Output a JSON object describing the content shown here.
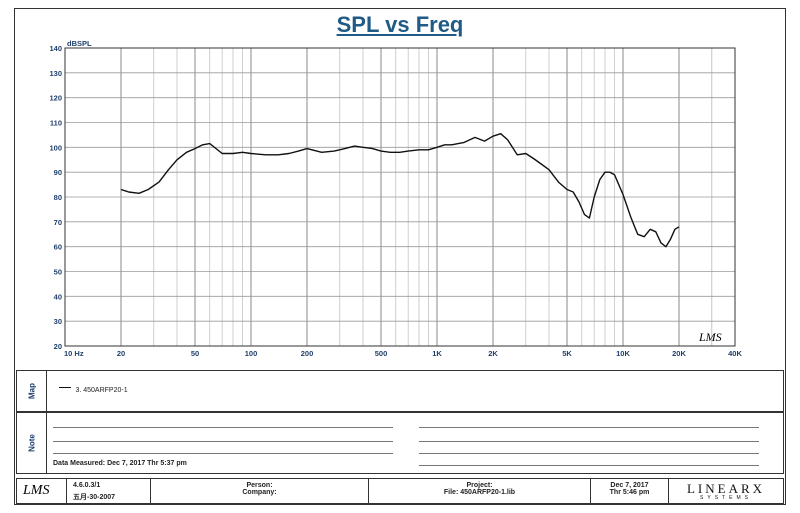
{
  "chart_data": {
    "type": "line",
    "title": "SPL vs Freq",
    "ylabel": "dBSPL",
    "xlabel": "",
    "x_scale": "log",
    "xlim": [
      10,
      40000
    ],
    "ylim": [
      20,
      140
    ],
    "x_ticks": [
      {
        "value": 10,
        "label": "10  Hz"
      },
      {
        "value": 20,
        "label": "20"
      },
      {
        "value": 50,
        "label": "50"
      },
      {
        "value": 100,
        "label": "100"
      },
      {
        "value": 200,
        "label": "200"
      },
      {
        "value": 500,
        "label": "500"
      },
      {
        "value": 1000,
        "label": "1K"
      },
      {
        "value": 2000,
        "label": "2K"
      },
      {
        "value": 5000,
        "label": "5K"
      },
      {
        "value": 10000,
        "label": "10K"
      },
      {
        "value": 20000,
        "label": "20K"
      },
      {
        "value": 40000,
        "label": "40K"
      }
    ],
    "y_ticks": [
      20,
      30,
      40,
      50,
      60,
      70,
      80,
      90,
      100,
      110,
      120,
      130,
      140
    ],
    "grid": true,
    "series": [
      {
        "name": "3. 450ARFP20-1",
        "color": "#111111",
        "x": [
          20,
          22,
          25,
          28,
          32,
          36,
          40,
          45,
          50,
          55,
          60,
          70,
          80,
          90,
          100,
          120,
          140,
          160,
          180,
          200,
          240,
          280,
          320,
          360,
          400,
          450,
          500,
          560,
          630,
          700,
          800,
          900,
          1000,
          1100,
          1200,
          1400,
          1600,
          1800,
          2000,
          2200,
          2400,
          2700,
          3000,
          3300,
          3600,
          4000,
          4500,
          5000,
          5400,
          5800,
          6200,
          6600,
          7000,
          7500,
          8000,
          8500,
          9000,
          10000,
          11000,
          12000,
          13000,
          14000,
          15000,
          16000,
          17000,
          18000,
          19000,
          20000
        ],
        "y": [
          83,
          82,
          81.5,
          83,
          86,
          91,
          95,
          98,
          99.5,
          101,
          101.5,
          97.5,
          97.5,
          98,
          97.5,
          97,
          97,
          97.5,
          98.5,
          99.5,
          98,
          98.5,
          99.5,
          100.5,
          100,
          99.5,
          98.5,
          98,
          98,
          98.5,
          99,
          99,
          100,
          101,
          101,
          102,
          104,
          102.5,
          104.5,
          105.5,
          103,
          97,
          97.5,
          95.5,
          93.5,
          91,
          86,
          83,
          82,
          78,
          73,
          71.5,
          80,
          87,
          90,
          90,
          89,
          81,
          72,
          65,
          64,
          67,
          66,
          61.5,
          60,
          63,
          67,
          68
        ]
      }
    ]
  },
  "watermark": "LMS",
  "map_panel": {
    "tab": "Map",
    "legend_label": "3. 450ARFP20-1"
  },
  "notes_panel": {
    "tab": "Note",
    "date_measured": "Data Measured: Dec 7, 2017  Thr  5:37 pm"
  },
  "footer": {
    "logo": "LMS",
    "version": "4.6.0.3/1",
    "build": "五月-30-2007",
    "person_label": "Person:",
    "company_label": "Company:",
    "project_label": "Project:",
    "file_label": "File: 450ARFP20-1.lib",
    "date": "Dec 7, 2017",
    "time": "Thr  5:46 pm",
    "brand": "LINEARX",
    "brand_sub": "SYSTEMS"
  }
}
